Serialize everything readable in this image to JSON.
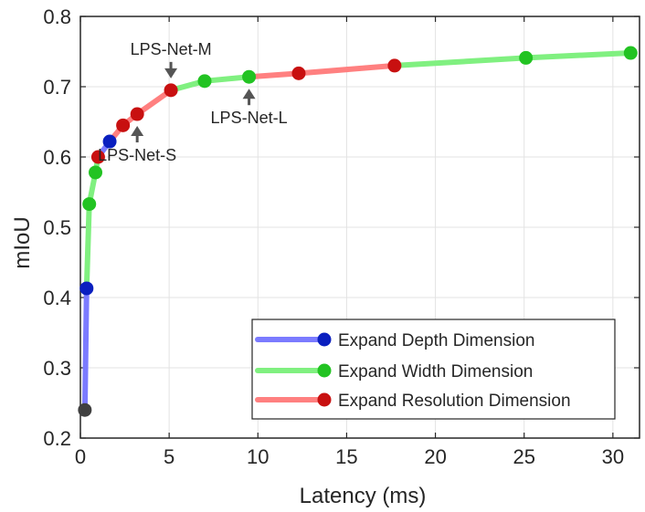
{
  "chart_data": {
    "type": "line",
    "title": "",
    "xlabel": "Latency (ms)",
    "ylabel": "mIoU",
    "xlim": [
      0,
      31.5
    ],
    "ylim": [
      0.2,
      0.8
    ],
    "xticks": [
      0,
      5,
      10,
      15,
      20,
      25,
      30
    ],
    "yticks": [
      0.2,
      0.3,
      0.4,
      0.5,
      0.6,
      0.7,
      0.8
    ],
    "xtick_labels": [
      "0",
      "5",
      "10",
      "15",
      "20",
      "25",
      "30"
    ],
    "ytick_labels": [
      "0.2",
      "0.3",
      "0.4",
      "0.5",
      "0.6",
      "0.7",
      "0.8"
    ],
    "grid": true,
    "legend_position": "bottom-right",
    "start_point": {
      "x": 0.25,
      "y": 0.24,
      "color": "#404040"
    },
    "series": [
      {
        "name": "Expand Depth Dimension",
        "line_color": "#7b7bff",
        "marker_color": "#0a1fbf",
        "segments": [
          [
            {
              "x": 0.25,
              "y": 0.24
            },
            {
              "x": 0.35,
              "y": 0.413
            }
          ],
          [
            {
              "x": 1.0,
              "y": 0.6
            },
            {
              "x": 1.65,
              "y": 0.622
            }
          ]
        ],
        "points": [
          {
            "x": 0.35,
            "y": 0.413
          },
          {
            "x": 1.65,
            "y": 0.622
          }
        ]
      },
      {
        "name": "Expand Width Dimension",
        "line_color": "#80f080",
        "marker_color": "#22c322",
        "segments": [
          [
            {
              "x": 0.35,
              "y": 0.413
            },
            {
              "x": 0.5,
              "y": 0.533
            },
            {
              "x": 0.85,
              "y": 0.578
            },
            {
              "x": 1.0,
              "y": 0.6
            }
          ],
          [
            {
              "x": 5.1,
              "y": 0.695
            },
            {
              "x": 7.0,
              "y": 0.708
            },
            {
              "x": 9.5,
              "y": 0.714
            }
          ],
          [
            {
              "x": 17.7,
              "y": 0.73
            },
            {
              "x": 25.1,
              "y": 0.741
            },
            {
              "x": 31.0,
              "y": 0.748
            }
          ]
        ],
        "points": [
          {
            "x": 0.5,
            "y": 0.533
          },
          {
            "x": 0.85,
            "y": 0.578
          },
          {
            "x": 7.0,
            "y": 0.708
          },
          {
            "x": 9.5,
            "y": 0.714
          },
          {
            "x": 25.1,
            "y": 0.741
          },
          {
            "x": 31.0,
            "y": 0.748
          }
        ]
      },
      {
        "name": "Expand Resolution Dimension",
        "line_color": "#ff8080",
        "marker_color": "#c81010",
        "segments": [
          [
            {
              "x": 1.65,
              "y": 0.622
            },
            {
              "x": 2.4,
              "y": 0.645
            },
            {
              "x": 3.2,
              "y": 0.661
            },
            {
              "x": 5.1,
              "y": 0.695
            }
          ],
          [
            {
              "x": 9.5,
              "y": 0.714
            },
            {
              "x": 12.3,
              "y": 0.719
            },
            {
              "x": 17.7,
              "y": 0.73
            }
          ]
        ],
        "points": [
          {
            "x": 1.0,
            "y": 0.6
          },
          {
            "x": 2.4,
            "y": 0.645
          },
          {
            "x": 3.2,
            "y": 0.661
          },
          {
            "x": 5.1,
            "y": 0.695
          },
          {
            "x": 12.3,
            "y": 0.719
          },
          {
            "x": 17.7,
            "y": 0.73
          }
        ]
      }
    ],
    "annotations": [
      {
        "text": "LPS-Net-S",
        "x": 3.2,
        "y": 0.661,
        "arrow": "up",
        "label_position": "below"
      },
      {
        "text": "LPS-Net-M",
        "x": 5.1,
        "y": 0.695,
        "arrow": "down",
        "label_position": "above"
      },
      {
        "text": "LPS-Net-L",
        "x": 9.5,
        "y": 0.714,
        "arrow": "up",
        "label_position": "below"
      }
    ]
  }
}
